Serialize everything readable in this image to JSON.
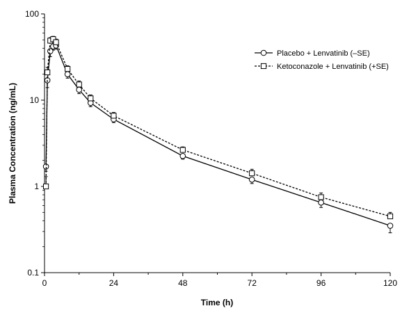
{
  "chart_data": {
    "type": "line",
    "title": "",
    "xlabel": "Time (h)",
    "ylabel": "Plasma Concentration (ng/mL)",
    "xlim": [
      0,
      120
    ],
    "ylim": [
      0.1,
      100
    ],
    "yscale": "log",
    "grid": false,
    "legend_position": "top-right",
    "x_ticks": [
      "0",
      "24",
      "48",
      "72",
      "96",
      "120"
    ],
    "y_ticks": [
      "0.1",
      "1",
      "10",
      "100"
    ],
    "series": [
      {
        "name": "Placebo + Lenvatinib (–SE)",
        "marker": "circle",
        "line": "solid",
        "x": [
          0,
          0.5,
          1,
          2,
          3,
          4,
          8,
          12,
          16,
          24,
          48,
          72,
          96,
          120
        ],
        "y": [
          0,
          1.7,
          17,
          37,
          42,
          43,
          20,
          13.2,
          9.3,
          6.0,
          2.25,
          1.2,
          0.65,
          0.35
        ],
        "se": [
          0,
          0.2,
          3,
          5,
          4,
          4,
          2,
          1.3,
          0.9,
          0.5,
          0.18,
          0.12,
          0.08,
          0.06
        ]
      },
      {
        "name": "Ketoconazole + Lenvatinib (+SE)",
        "marker": "square",
        "line": "dashed",
        "x": [
          0,
          0.5,
          1,
          2,
          3,
          4,
          8,
          12,
          16,
          24,
          48,
          72,
          96,
          120
        ],
        "y": [
          0,
          1.0,
          21,
          49,
          51,
          47,
          23,
          15.2,
          10.5,
          6.6,
          2.65,
          1.42,
          0.75,
          0.45
        ],
        "se": [
          0,
          0.3,
          3,
          4,
          4,
          4,
          2,
          1.5,
          1.0,
          0.6,
          0.22,
          0.16,
          0.09,
          0.05
        ]
      }
    ]
  }
}
